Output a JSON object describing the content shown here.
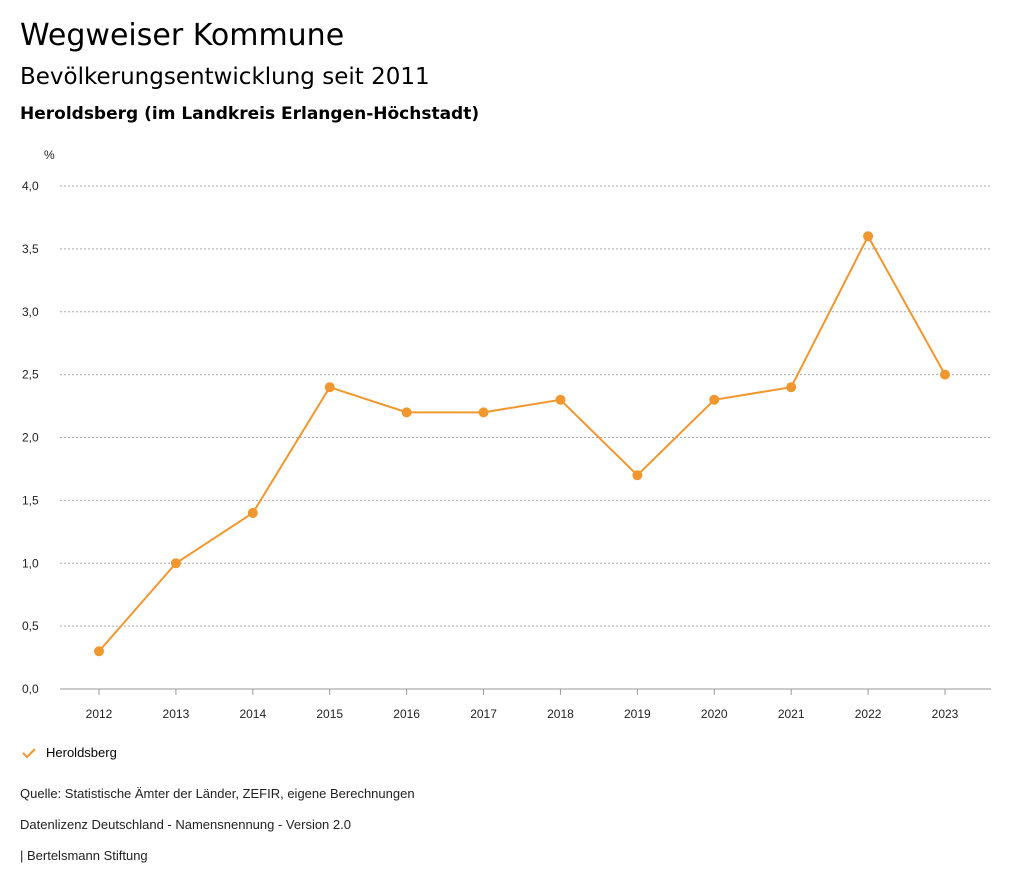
{
  "header": {
    "title": "Wegweiser Kommune",
    "subtitle": "Bevölkerungsentwicklung seit 2011",
    "region": "Heroldsberg (im Landkreis Erlangen-Höchstadt)"
  },
  "chart_data": {
    "type": "line",
    "ylabel": "%",
    "ylim": [
      0,
      4
    ],
    "yticks": [
      "0,0",
      "0,5",
      "1,0",
      "1,5",
      "2,0",
      "2,5",
      "3,0",
      "3,5",
      "4,0"
    ],
    "categories": [
      "2012",
      "2013",
      "2014",
      "2015",
      "2016",
      "2017",
      "2018",
      "2019",
      "2020",
      "2021",
      "2022",
      "2023"
    ],
    "series": [
      {
        "name": "Heroldsberg",
        "color": "#f0972f",
        "values": [
          0.3,
          1.0,
          1.4,
          2.4,
          2.2,
          2.2,
          2.3,
          1.7,
          2.3,
          2.4,
          3.6,
          2.5
        ]
      }
    ],
    "grid": true,
    "legend": "bottom-left"
  },
  "footer": {
    "source": "Quelle: Statistische Ämter der Länder, ZEFIR, eigene Berechnungen",
    "license": "Datenlizenz Deutschland - Namensnennung - Version 2.0",
    "publisher": "| Bertelsmann Stiftung"
  }
}
